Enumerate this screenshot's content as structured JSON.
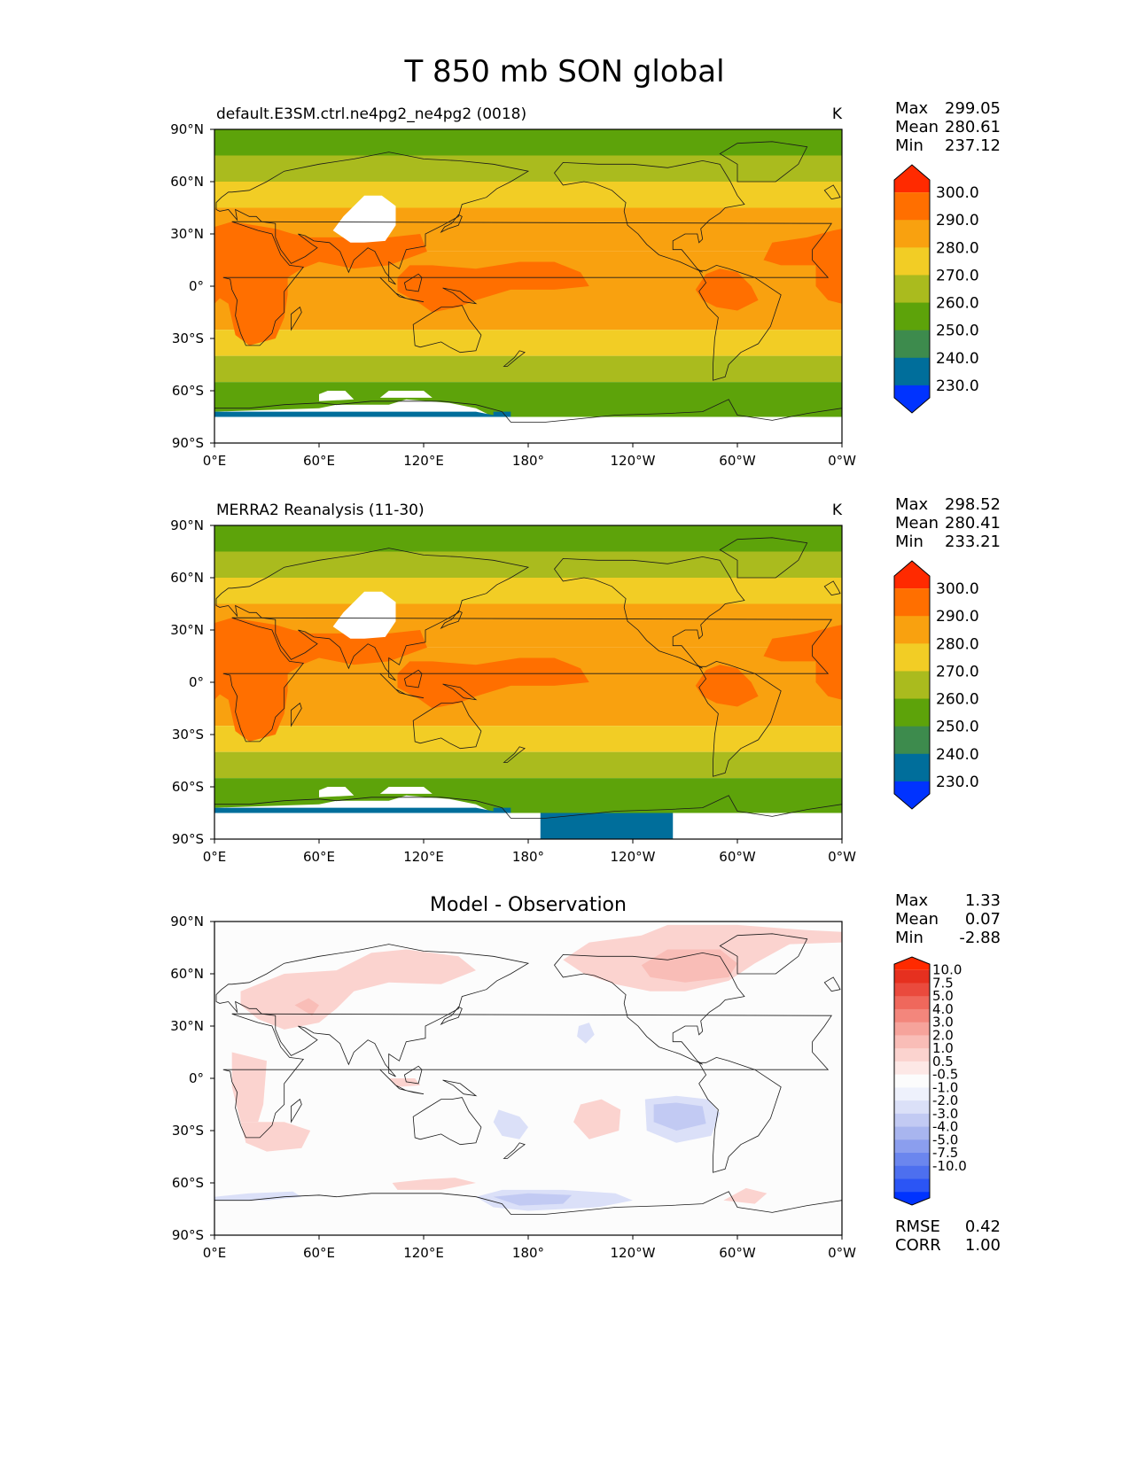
{
  "figure_title": "T 850 mb SON global",
  "colors": {
    "abs": [
      "#0033ff",
      "#006e9b",
      "#3d8b4d",
      "#5da30a",
      "#aabb1e",
      "#f2cd25",
      "#f9a10f",
      "#ff6f00",
      "#ff2a00"
    ],
    "diff": [
      "#0033ff",
      "#2b55f5",
      "#4d6fef",
      "#6b86ee",
      "#8b9eee",
      "#a8b5ef",
      "#c2caf3",
      "#dbe0f8",
      "#eef1fc",
      "#fcfcfc",
      "#fde8e6",
      "#fbd3cf",
      "#f9bdb7",
      "#f6a39b",
      "#f3867c",
      "#ef685c",
      "#ea4a3d",
      "#e6301f",
      "#ff2a00"
    ]
  },
  "chart_data": [
    {
      "type": "heatmap",
      "title": "default.E3SM.ctrl.ne4pg2_ne4pg2 (0018)",
      "units": "K",
      "stats": [
        [
          "Max",
          "299.05"
        ],
        [
          "Mean",
          "280.61"
        ],
        [
          "Min",
          "237.12"
        ]
      ],
      "xticks": [
        "0°E",
        "60°E",
        "120°E",
        "180°",
        "120°W",
        "60°W",
        "0°W"
      ],
      "yticks": [
        "90°N",
        "60°N",
        "30°N",
        "0°",
        "30°S",
        "60°S",
        "90°S"
      ],
      "xlim": [
        0,
        360
      ],
      "ylim": [
        -90,
        90
      ],
      "colorbar_levels": [
        "300.0",
        "290.0",
        "280.0",
        "270.0",
        "260.0",
        "250.0",
        "240.0",
        "230.0"
      ],
      "zonal_band_levels": [
        {
          "lat": [
            75,
            90
          ],
          "level": 3
        },
        {
          "lat": [
            60,
            75
          ],
          "level": 4
        },
        {
          "lat": [
            45,
            60
          ],
          "level": 5
        },
        {
          "lat": [
            20,
            45
          ],
          "level": 6
        },
        {
          "lat": [
            -25,
            20
          ],
          "level": 6
        },
        {
          "lat": [
            -40,
            -25
          ],
          "level": 5
        },
        {
          "lat": [
            -55,
            -40
          ],
          "level": 4
        },
        {
          "lat": [
            -75,
            -55
          ],
          "level": 3
        }
      ],
      "warm_regions": [
        "Africa",
        "Arabia-India",
        "Indo-Pacific warm pool",
        "South America",
        "West African coast"
      ]
    },
    {
      "type": "heatmap",
      "title": "MERRA2 Reanalysis (11-30)",
      "units": "K",
      "stats": [
        [
          "Max",
          "298.52"
        ],
        [
          "Mean",
          "280.41"
        ],
        [
          "Min",
          "233.21"
        ]
      ],
      "xticks": [
        "0°E",
        "60°E",
        "120°E",
        "180°",
        "120°W",
        "60°W",
        "0°W"
      ],
      "yticks": [
        "90°N",
        "60°N",
        "30°N",
        "0°",
        "30°S",
        "60°S",
        "90°S"
      ],
      "xlim": [
        0,
        360
      ],
      "ylim": [
        -90,
        90
      ],
      "colorbar_levels": [
        "300.0",
        "290.0",
        "280.0",
        "270.0",
        "260.0",
        "250.0",
        "240.0",
        "230.0"
      ],
      "zonal_band_levels": [
        {
          "lat": [
            75,
            90
          ],
          "level": 3
        },
        {
          "lat": [
            60,
            75
          ],
          "level": 4
        },
        {
          "lat": [
            45,
            60
          ],
          "level": 5
        },
        {
          "lat": [
            20,
            45
          ],
          "level": 6
        },
        {
          "lat": [
            -25,
            20
          ],
          "level": 6
        },
        {
          "lat": [
            -40,
            -25
          ],
          "level": 5
        },
        {
          "lat": [
            -55,
            -40
          ],
          "level": 4
        },
        {
          "lat": [
            -75,
            -55
          ],
          "level": 3
        }
      ],
      "cold_regions": [
        "Ross Sea sector"
      ]
    },
    {
      "type": "heatmap",
      "title": "Model - Observation",
      "units": "",
      "stats": [
        [
          "Max",
          "1.33"
        ],
        [
          "Mean",
          "0.07"
        ],
        [
          "Min",
          "-2.88"
        ]
      ],
      "xticks": [
        "0°E",
        "60°E",
        "120°E",
        "180°",
        "120°W",
        "60°W",
        "0°W"
      ],
      "yticks": [
        "90°N",
        "60°N",
        "30°N",
        "0°",
        "30°S",
        "60°S",
        "90°S"
      ],
      "xlim": [
        0,
        360
      ],
      "ylim": [
        -90,
        90
      ],
      "colorbar_levels": [
        "10.0",
        "7.5",
        "5.0",
        "4.0",
        "3.0",
        "2.0",
        "1.0",
        "0.5",
        "-0.5",
        "-1.0",
        "-2.0",
        "-3.0",
        "-4.0",
        "-5.0",
        "-7.5",
        "-10.0"
      ],
      "metrics": [
        [
          "RMSE",
          "0.42"
        ],
        [
          "CORR",
          "1.00"
        ]
      ]
    }
  ]
}
